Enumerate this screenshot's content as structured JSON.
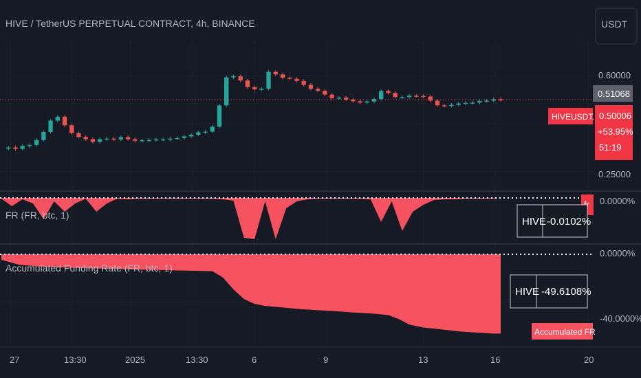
{
  "header": {
    "symbol_title": "HIVE / TetherUS PERPETUAL CONTRACT, 4h, BINANCE",
    "currency": "USDT"
  },
  "price_axis": {
    "ticks": [
      "0.60000",
      "0.25000"
    ],
    "last_price": "0.51068",
    "current": {
      "ticker": "HIVEUSDT.P",
      "price": "0.50006",
      "change": "+53.95%",
      "countdown": "51:19"
    }
  },
  "fr_pane": {
    "title": "FR (FR, btc, 1)",
    "axis_tick": "0.0000%",
    "badge": "fr",
    "table": {
      "symbol": "HIVE",
      "value": "-0.0102%"
    }
  },
  "acc_pane": {
    "title": "Accumulated Funding Rate (FR, btc, 1)",
    "axis_ticks": [
      "0.0000%",
      "-40.0000%"
    ],
    "table": {
      "symbol": "HIVE",
      "value": "-49.6108%"
    },
    "badge": "Accumulated FR"
  },
  "time_axis": {
    "labels": [
      "27",
      "13:30",
      "2025",
      "13:30",
      "6",
      "9",
      "13",
      "16",
      "20"
    ]
  },
  "colors": {
    "up": "#26a69a",
    "down": "#ef5350",
    "area": "#f7525f",
    "bg": "#161a25",
    "text": "#b2b5be"
  },
  "chart_data": [
    {
      "type": "line",
      "title": "HIVE / TetherUS PERPETUAL CONTRACT, 4h, BINANCE",
      "style": "candlestick",
      "ylim": [
        0.25,
        0.6
      ],
      "x": [
        0,
        2,
        4,
        6,
        8,
        10,
        12,
        14,
        16,
        18,
        20,
        22,
        24,
        26,
        28,
        30,
        32,
        34,
        36,
        38,
        40,
        42,
        44,
        46,
        48,
        50,
        52,
        54,
        56,
        58,
        60,
        62,
        64,
        66,
        68,
        70,
        72,
        74,
        76,
        78,
        80,
        82,
        84,
        86,
        88,
        90,
        92,
        94,
        96,
        98,
        100,
        102,
        104,
        106,
        108,
        110,
        112,
        114,
        116,
        118,
        120,
        122,
        124,
        126,
        128,
        130,
        132,
        134,
        136,
        138,
        140,
        142
      ],
      "close": [
        0.334,
        0.338,
        0.333,
        0.343,
        0.347,
        0.365,
        0.394,
        0.435,
        0.449,
        0.418,
        0.39,
        0.376,
        0.368,
        0.358,
        0.368,
        0.37,
        0.367,
        0.375,
        0.368,
        0.362,
        0.364,
        0.365,
        0.367,
        0.367,
        0.37,
        0.372,
        0.378,
        0.384,
        0.393,
        0.395,
        0.413,
        0.49,
        0.591,
        0.595,
        0.58,
        0.556,
        0.548,
        0.55,
        0.611,
        0.602,
        0.59,
        0.586,
        0.578,
        0.564,
        0.55,
        0.543,
        0.529,
        0.516,
        0.518,
        0.511,
        0.505,
        0.5,
        0.504,
        0.513,
        0.542,
        0.535,
        0.52,
        0.52,
        0.525,
        0.524,
        0.522,
        0.507,
        0.49,
        0.488,
        0.492,
        0.497,
        0.499,
        0.5,
        0.506,
        0.507,
        0.512,
        0.51
      ],
      "current_price": 0.51068
    },
    {
      "type": "area",
      "title": "FR (FR, btc, 1)",
      "unit": "%",
      "x": [
        0,
        3,
        6,
        9,
        12,
        15,
        18,
        21,
        24,
        27,
        30,
        33,
        36,
        39,
        42,
        45,
        48,
        51,
        54,
        57,
        60,
        63,
        66,
        69,
        72,
        75,
        78,
        81,
        84,
        87,
        90,
        93,
        96,
        99,
        102,
        105,
        108,
        111,
        114,
        117,
        120,
        123,
        126,
        129,
        132,
        135,
        138,
        141
      ],
      "values": [
        -0.01,
        -0.12,
        -0.02,
        -0.08,
        -0.31,
        -0.05,
        -0.2,
        -0.08,
        -0.01,
        -0.2,
        -0.08,
        -0.01,
        -0.02,
        -0.01,
        -0.01,
        -0.01,
        -0.01,
        -0.01,
        -0.01,
        -0.01,
        -0.01,
        -0.02,
        -0.04,
        -0.58,
        -0.6,
        -0.05,
        -0.6,
        -0.15,
        -0.05,
        -0.02,
        -0.01,
        -0.01,
        -0.01,
        -0.01,
        -0.01,
        -0.02,
        -0.35,
        -0.05,
        -0.48,
        -0.2,
        -0.1,
        -0.03,
        -0.02,
        -0.02,
        -0.01,
        -0.01,
        -0.01,
        -0.0102
      ],
      "current_value": "-0.0102%"
    },
    {
      "type": "area",
      "title": "Accumulated Funding Rate (FR, btc, 1)",
      "unit": "%",
      "y_ticks": [
        "0.0000%",
        "-40.0000%"
      ],
      "x": [
        0,
        5,
        10,
        15,
        20,
        25,
        30,
        35,
        40,
        45,
        50,
        55,
        60,
        63,
        66,
        69,
        72,
        75,
        80,
        85,
        90,
        95,
        100,
        105,
        110,
        113,
        116,
        120,
        125,
        130,
        135,
        140,
        142
      ],
      "values": [
        -3.5,
        -6.5,
        -7.5,
        -8.0,
        -8.4,
        -8.8,
        -9.0,
        -9.3,
        -9.6,
        -9.8,
        -10.1,
        -10.3,
        -10.6,
        -14.5,
        -22.0,
        -28.0,
        -31.0,
        -32.3,
        -33.3,
        -34.3,
        -35.0,
        -35.6,
        -36.4,
        -37.0,
        -38.0,
        -40.5,
        -44.0,
        -45.8,
        -47.0,
        -48.2,
        -49.0,
        -49.6,
        -49.6108
      ],
      "current_value": "-49.6108%"
    }
  ]
}
